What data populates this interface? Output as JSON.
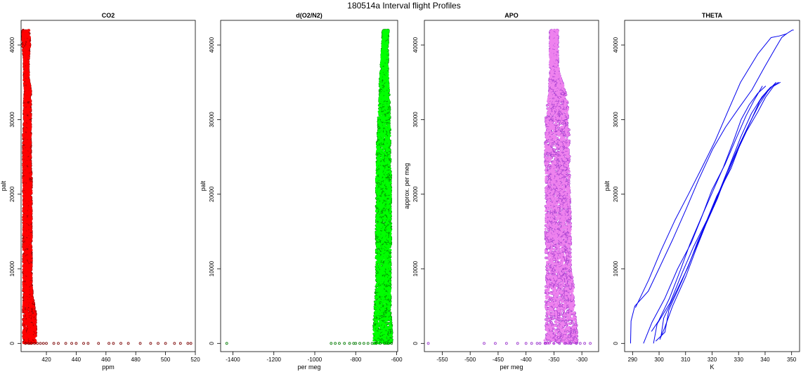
{
  "page": {
    "title": "180514a   Interval flight Profiles"
  },
  "chart_data": [
    {
      "type": "scatter",
      "title": "CO2",
      "xlabel": "ppm",
      "ylabel": "palt",
      "xlim": [
        403,
        520
      ],
      "ylim": [
        -1100,
        43300
      ],
      "xticks": [
        420,
        440,
        460,
        480,
        500,
        520
      ],
      "yticks": [
        0,
        10000,
        20000,
        30000,
        40000
      ],
      "color": "#ff0000",
      "edge_color": "#7a0000",
      "profile": {
        "y": [
          0,
          2000,
          4000,
          6000,
          8000,
          10000,
          12000,
          14000,
          16000,
          18000,
          20000,
          22000,
          24000,
          26000,
          28000,
          30000,
          32000,
          34000,
          35000,
          36000,
          38000,
          40000,
          42000
        ],
        "x_min": [
          404.5,
          404.5,
          404.5,
          404.5,
          404.5,
          404.5,
          404.5,
          404.5,
          404.5,
          404.5,
          404.5,
          404.5,
          404.5,
          404.5,
          404.5,
          405,
          405,
          405.5,
          405,
          405,
          405,
          404,
          403.5
        ],
        "x_max": [
          413,
          413,
          413,
          411,
          410,
          410,
          410,
          410,
          410,
          410,
          410,
          410,
          409.5,
          409.5,
          409.5,
          409.5,
          409.5,
          409.5,
          408.5,
          408,
          408,
          409,
          408.5
        ]
      },
      "outliers": {
        "x": [
          406,
          408,
          410,
          412,
          414,
          416,
          418,
          420,
          425,
          428,
          433,
          437,
          440,
          445,
          448,
          455,
          462,
          465,
          470,
          475,
          483,
          490,
          495,
          500,
          506,
          510,
          515,
          517
        ],
        "y": [
          0,
          0,
          0,
          0,
          0,
          0,
          0,
          0,
          0,
          0,
          0,
          0,
          0,
          0,
          0,
          0,
          0,
          0,
          0,
          0,
          0,
          0,
          0,
          0,
          0,
          0,
          0,
          0
        ]
      }
    },
    {
      "type": "scatter",
      "title": "d(O2/N2)",
      "xlabel": "per meg",
      "ylabel": "palt",
      "xlim": [
        -1460,
        -595
      ],
      "ylim": [
        -1100,
        43300
      ],
      "xticks": [
        -1400,
        -1200,
        -1000,
        -800,
        -600
      ],
      "yticks": [
        0,
        10000,
        20000,
        30000,
        40000
      ],
      "color": "#00ff00",
      "edge_color": "#007a00",
      "profile": {
        "y": [
          0,
          2000,
          4000,
          6000,
          8000,
          10000,
          12000,
          14000,
          16000,
          18000,
          20000,
          22000,
          24000,
          26000,
          28000,
          30000,
          32000,
          34000,
          35000,
          36000,
          38000,
          40000,
          42000
        ],
        "x_min": [
          -713,
          -713,
          -710,
          -705,
          -700,
          -700,
          -700,
          -700,
          -700,
          -700,
          -700,
          -700,
          -697,
          -697,
          -693,
          -690,
          -685,
          -682,
          -682,
          -680,
          -675,
          -670,
          -668
        ],
        "x_max": [
          -622,
          -622,
          -630,
          -630,
          -630,
          -630,
          -630,
          -628,
          -628,
          -628,
          -628,
          -628,
          -630,
          -630,
          -632,
          -633,
          -635,
          -637,
          -642,
          -643,
          -643,
          -643,
          -640
        ]
      },
      "outliers": {
        "x": [
          -1430,
          -920,
          -900,
          -880,
          -855,
          -830,
          -810,
          -800,
          -780,
          -760,
          -740,
          -720,
          -700,
          -680,
          -660,
          -640,
          -625
        ],
        "y": [
          0,
          0,
          0,
          0,
          0,
          0,
          0,
          0,
          0,
          0,
          0,
          0,
          0,
          0,
          0,
          0,
          0
        ]
      }
    },
    {
      "type": "scatter",
      "title": "APO",
      "xlabel": "per meg",
      "ylabel": "approx. per meg",
      "xlim": [
        -582,
        -270
      ],
      "ylim": [
        -1100,
        43300
      ],
      "xticks": [
        -550,
        -500,
        -450,
        -400,
        -350,
        -300
      ],
      "yticks": [
        0,
        10000,
        20000,
        30000,
        40000
      ],
      "color": "#ee82ee",
      "edge_color": "#9932cc",
      "profile": {
        "y": [
          0,
          2000,
          4000,
          6000,
          8000,
          10000,
          12000,
          14000,
          16000,
          18000,
          20000,
          22000,
          24000,
          26000,
          28000,
          30000,
          32000,
          34000,
          35000,
          36000,
          38000,
          40000,
          42000
        ],
        "x_min": [
          -368,
          -365,
          -365,
          -365,
          -365,
          -363,
          -365,
          -365,
          -365,
          -365,
          -365,
          -365,
          -366,
          -366,
          -365,
          -365,
          -362,
          -358,
          -358,
          -357,
          -357,
          -357,
          -357
        ],
        "x_max": [
          -308,
          -308,
          -312,
          -315,
          -315,
          -320,
          -320,
          -320,
          -320,
          -320,
          -322,
          -322,
          -322,
          -322,
          -322,
          -325,
          -325,
          -330,
          -335,
          -340,
          -343,
          -343,
          -343
        ]
      },
      "outliers": {
        "x": [
          -575,
          -475,
          -455,
          -435,
          -415,
          -400,
          -390,
          -380,
          -375,
          -365,
          -350,
          -340,
          -330,
          -320,
          -310,
          -303,
          -295,
          -285
        ],
        "y": [
          0,
          0,
          0,
          0,
          0,
          0,
          0,
          0,
          0,
          0,
          0,
          0,
          0,
          0,
          0,
          0,
          0,
          0
        ]
      }
    },
    {
      "type": "line",
      "title": "THETA",
      "xlabel": "K",
      "ylabel": "palt",
      "xlim": [
        287,
        353
      ],
      "ylim": [
        -1100,
        43300
      ],
      "xticks": [
        290,
        300,
        310,
        320,
        330,
        340,
        350
      ],
      "yticks": [
        0,
        10000,
        20000,
        30000,
        40000
      ],
      "color": "#0000ee",
      "series": [
        {
          "x": [
            289,
            289.5,
            291,
            296,
            300,
            305,
            310,
            315,
            320,
            325,
            330,
            335,
            340,
            344,
            346,
            348,
            350,
            351
          ],
          "y": [
            0,
            3000,
            5000,
            7000,
            10000,
            14000,
            18000,
            22000,
            26000,
            29000,
            31500,
            34000,
            37000,
            39500,
            41000,
            41500,
            42000,
            42000
          ]
        },
        {
          "x": [
            291,
            296,
            301,
            306,
            311,
            316,
            321,
            326,
            331,
            337,
            342,
            345,
            348
          ],
          "y": [
            4800,
            8500,
            12500,
            16500,
            20000,
            23500,
            27000,
            31000,
            35000,
            38800,
            41000,
            41200,
            41500
          ]
        },
        {
          "x": [
            299,
            302,
            304,
            309,
            313,
            317,
            321,
            325,
            329,
            333,
            337,
            340,
            343,
            346
          ],
          "y": [
            300,
            1500,
            4500,
            8500,
            12000,
            15500,
            18700,
            22000,
            25500,
            28500,
            31000,
            33000,
            34500,
            35000
          ]
        },
        {
          "x": [
            300,
            302,
            305,
            310,
            314,
            318,
            322,
            326,
            330,
            334,
            338,
            341,
            344
          ],
          "y": [
            500,
            2200,
            5000,
            9000,
            12500,
            16000,
            19500,
            23000,
            26500,
            29500,
            32000,
            33800,
            35000
          ]
        },
        {
          "x": [
            298,
            299,
            304,
            309,
            313,
            318,
            322,
            327,
            331,
            335,
            338,
            341
          ],
          "y": [
            0,
            2600,
            5500,
            9500,
            13000,
            16500,
            19700,
            23500,
            27000,
            30000,
            32500,
            34000
          ]
        },
        {
          "x": [
            294,
            297,
            302,
            307,
            312,
            316,
            320,
            325,
            329,
            333,
            336,
            339
          ],
          "y": [
            0,
            2800,
            6000,
            10000,
            13500,
            17000,
            20500,
            24000,
            27500,
            30500,
            32500,
            34500
          ]
        },
        {
          "x": [
            300.5,
            302,
            306,
            311,
            315,
            319,
            323,
            327,
            331,
            335,
            339,
            342,
            345
          ],
          "y": [
            900,
            3400,
            6500,
            10200,
            13800,
            17200,
            20500,
            24200,
            27700,
            30800,
            33000,
            34300,
            35000
          ]
        },
        {
          "x": [
            297,
            300,
            304,
            308,
            312,
            316,
            320,
            324,
            328,
            331,
            334,
            337,
            340
          ],
          "y": [
            1600,
            3000,
            6000,
            9800,
            13400,
            16800,
            20200,
            23600,
            27000,
            30000,
            32000,
            33500,
            34500
          ]
        }
      ]
    }
  ]
}
